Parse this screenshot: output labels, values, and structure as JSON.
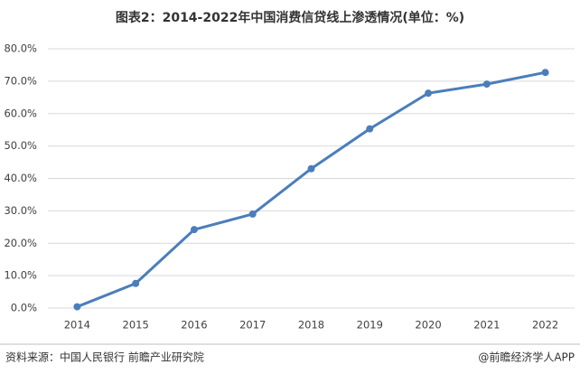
{
  "chart_data": {
    "type": "line",
    "title": "图表2：2014-2022年中国消费信贷线上渗透情况(单位：%)",
    "categories": [
      "2014",
      "2015",
      "2016",
      "2017",
      "2018",
      "2019",
      "2020",
      "2021",
      "2022"
    ],
    "values": [
      0.4,
      7.6,
      24.2,
      29.0,
      43.0,
      55.3,
      66.3,
      69.1,
      72.7
    ],
    "color": "#4a7ebb",
    "ylim": [
      0,
      80
    ],
    "yticks": [
      {
        "value": 0,
        "label": "0.0%"
      },
      {
        "value": 10,
        "label": "10.0%"
      },
      {
        "value": 20,
        "label": "20.0%"
      },
      {
        "value": 30,
        "label": "30.0%"
      },
      {
        "value": 40,
        "label": "40.0%"
      },
      {
        "value": 50,
        "label": "50.0%"
      },
      {
        "value": 60,
        "label": "60.0%"
      },
      {
        "value": 70,
        "label": "70.0%"
      },
      {
        "value": 80,
        "label": "80.0%"
      }
    ],
    "grid": true,
    "source": "资料来源：中国人民银行 前瞻产业研究院",
    "credit": "@前瞻经济学人APP"
  }
}
